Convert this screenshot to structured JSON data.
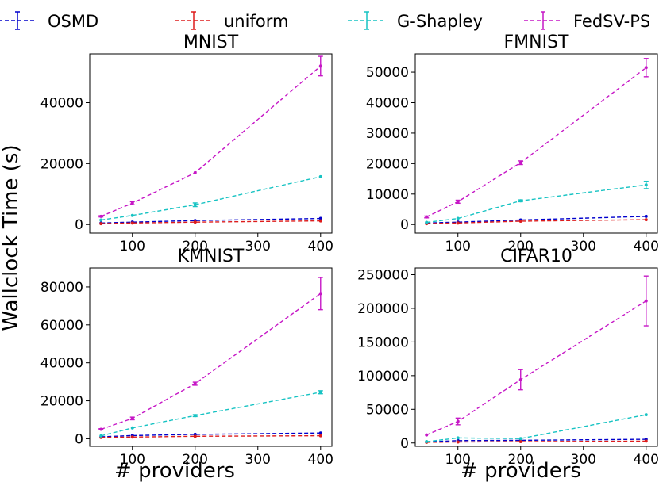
{
  "legend": {
    "items": [
      {
        "label": "OSMD",
        "color": "#0000cc"
      },
      {
        "label": "uniform",
        "color": "#dd1c1c"
      },
      {
        "label": "G-Shapley",
        "color": "#17c3c3"
      },
      {
        "label": "FedSV-PS",
        "color": "#c617c6"
      }
    ]
  },
  "figure": {
    "ylabel": "Wallclock Time (s)",
    "xlabel": "# providers"
  },
  "chart_data": [
    {
      "type": "line",
      "title": "MNIST",
      "x": [
        50,
        100,
        200,
        400
      ],
      "xticks": [
        100,
        200,
        300,
        400
      ],
      "xlim": [
        32,
        418
      ],
      "ylim": [
        -2800,
        56000
      ],
      "yticks": [
        0,
        20000,
        40000
      ],
      "series": [
        {
          "name": "OSMD",
          "color": "#0000cc",
          "y": [
            500,
            800,
            1300,
            2000
          ],
          "err": [
            0,
            0,
            0,
            0
          ]
        },
        {
          "name": "uniform",
          "color": "#dd1c1c",
          "y": [
            300,
            500,
            800,
            1200
          ],
          "err": [
            0,
            0,
            0,
            0
          ]
        },
        {
          "name": "G-Shapley",
          "color": "#17c3c3",
          "y": [
            1500,
            3000,
            6500,
            15700
          ],
          "err": [
            0,
            0,
            600,
            0
          ]
        },
        {
          "name": "FedSV-PS",
          "color": "#c617c6",
          "y": [
            2700,
            7000,
            17000,
            52000
          ],
          "err": [
            200,
            500,
            0,
            3200
          ]
        }
      ]
    },
    {
      "type": "line",
      "title": "FMNIST",
      "x": [
        50,
        100,
        200,
        400
      ],
      "xticks": [
        100,
        200,
        300,
        400
      ],
      "xlim": [
        32,
        418
      ],
      "ylim": [
        -2800,
        56000
      ],
      "yticks": [
        0,
        10000,
        20000,
        30000,
        40000,
        50000
      ],
      "series": [
        {
          "name": "OSMD",
          "color": "#0000cc",
          "y": [
            500,
            800,
            1500,
            2700
          ],
          "err": [
            0,
            0,
            0,
            0
          ]
        },
        {
          "name": "uniform",
          "color": "#dd1c1c",
          "y": [
            300,
            500,
            1100,
            1600
          ],
          "err": [
            0,
            0,
            0,
            0
          ]
        },
        {
          "name": "G-Shapley",
          "color": "#17c3c3",
          "y": [
            700,
            2000,
            7800,
            13000
          ],
          "err": [
            0,
            0,
            300,
            1200
          ]
        },
        {
          "name": "FedSV-PS",
          "color": "#c617c6",
          "y": [
            2500,
            7500,
            20300,
            51500
          ],
          "err": [
            300,
            500,
            600,
            3000
          ]
        }
      ]
    },
    {
      "type": "line",
      "title": "KMNIST",
      "x": [
        50,
        100,
        200,
        400
      ],
      "xticks": [
        100,
        200,
        300,
        400
      ],
      "xlim": [
        32,
        418
      ],
      "ylim": [
        -4000,
        90000
      ],
      "yticks": [
        0,
        20000,
        40000,
        60000,
        80000
      ],
      "series": [
        {
          "name": "OSMD",
          "color": "#0000cc",
          "y": [
            1000,
            1700,
            2300,
            3000
          ],
          "err": [
            0,
            0,
            0,
            0
          ]
        },
        {
          "name": "uniform",
          "color": "#dd1c1c",
          "y": [
            700,
            900,
            1300,
            1600
          ],
          "err": [
            0,
            0,
            0,
            0
          ]
        },
        {
          "name": "G-Shapley",
          "color": "#17c3c3",
          "y": [
            1500,
            5700,
            12200,
            24500
          ],
          "err": [
            0,
            0,
            500,
            800
          ]
        },
        {
          "name": "FedSV-PS",
          "color": "#c617c6",
          "y": [
            5000,
            10700,
            29000,
            76500
          ],
          "err": [
            300,
            700,
            800,
            8500
          ]
        }
      ]
    },
    {
      "type": "line",
      "title": "CIFAR10",
      "x": [
        50,
        100,
        200,
        400
      ],
      "xticks": [
        100,
        200,
        300,
        400
      ],
      "xlim": [
        32,
        418
      ],
      "ylim": [
        -5000,
        260000
      ],
      "yticks": [
        0,
        50000,
        100000,
        150000,
        200000,
        250000
      ],
      "series": [
        {
          "name": "OSMD",
          "color": "#0000cc",
          "y": [
            1500,
            3500,
            4000,
            5500
          ],
          "err": [
            0,
            0,
            0,
            0
          ]
        },
        {
          "name": "uniform",
          "color": "#dd1c1c",
          "y": [
            1000,
            1500,
            2000,
            2800
          ],
          "err": [
            0,
            0,
            0,
            0
          ]
        },
        {
          "name": "G-Shapley",
          "color": "#17c3c3",
          "y": [
            2000,
            7500,
            6500,
            42000
          ],
          "err": [
            0,
            0,
            0,
            0
          ]
        },
        {
          "name": "FedSV-PS",
          "color": "#c617c6",
          "y": [
            12000,
            32000,
            94000,
            211000
          ],
          "err": [
            0,
            5000,
            15000,
            37000
          ]
        }
      ]
    }
  ]
}
